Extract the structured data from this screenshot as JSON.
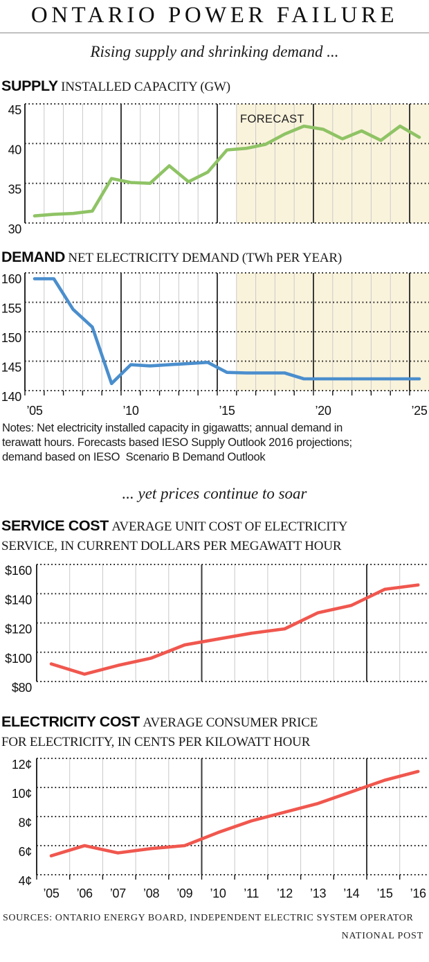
{
  "page": {
    "title": "ONTARIO POWER FAILURE",
    "subtitle1": "Rising supply and shrinking demand ...",
    "subtitle2": "... yet prices continue to soar",
    "notes_lines": [
      "Notes: Net electricity installed capacity in gigawatts; annual demand in",
      "terawatt hours. Forecasts based IESO Supply Outlook 2016 projections;",
      "demand based on IESO  Scenario B Demand Outlook"
    ],
    "sources": "SOURCES: ONTARIO ENERGY BOARD, INDEPENDENT ELECTRIC SYSTEM OPERATOR",
    "credit": "NATIONAL POST"
  },
  "colors": {
    "background": "#ffffff",
    "supply_line": "#8fc365",
    "demand_line": "#4a8ecd",
    "cost_line": "#f0574e",
    "forecast_bg": "#faf3dc",
    "grid_light": "#c9c9c9",
    "grid_dark": "#3a3a3a",
    "axis": "#111111",
    "dotted": "#1a1a1a",
    "rule": "#8a8a8a"
  },
  "chart_data": [
    {
      "id": "supply",
      "type": "line",
      "label_bold": "SUPPLY",
      "label_desc_line1": "INSTALLED CAPACITY (GW)",
      "label_desc_line2": "",
      "ylabel": "Installed capacity (GW)",
      "x": [
        2005,
        2006,
        2007,
        2008,
        2009,
        2010,
        2011,
        2012,
        2013,
        2014,
        2015,
        2016,
        2017,
        2018,
        2019,
        2020,
        2021,
        2022,
        2023,
        2024,
        2025
      ],
      "values": [
        30.9,
        31.1,
        31.2,
        31.5,
        35.6,
        35.1,
        35.0,
        37.2,
        35.2,
        36.4,
        39.2,
        39.4,
        39.9,
        41.2,
        42.2,
        41.8,
        40.6,
        41.6,
        40.4,
        42.2,
        40.8
      ],
      "ylim": [
        30,
        45
      ],
      "yticks": [
        45,
        40,
        35,
        30
      ],
      "ytick_labels": [
        "45",
        "40",
        "35",
        "30"
      ],
      "xtick_labels": [],
      "line_color": "#8fc365",
      "grid": "on",
      "forecast": {
        "label": "FORECAST",
        "from_x_index": 11
      }
    },
    {
      "id": "demand",
      "type": "line",
      "label_bold": "DEMAND",
      "label_desc_line1": "NET ELECTRICITY DEMAND (TWh PER YEAR)",
      "label_desc_line2": "",
      "ylabel": "Net electricity demand (TWh per year)",
      "x": [
        2005,
        2006,
        2007,
        2008,
        2009,
        2010,
        2011,
        2012,
        2013,
        2014,
        2015,
        2016,
        2017,
        2018,
        2019,
        2020,
        2021,
        2022,
        2023,
        2024,
        2025
      ],
      "values": [
        159.0,
        159.0,
        153.8,
        150.8,
        141.2,
        144.4,
        144.2,
        144.4,
        144.6,
        144.8,
        143.1,
        143.0,
        143.0,
        143.0,
        142.0,
        142.0,
        142.0,
        142.0,
        142.0,
        142.0,
        142.0
      ],
      "ylim": [
        140,
        160
      ],
      "yticks": [
        160,
        155,
        150,
        145,
        140
      ],
      "ytick_labels": [
        "160",
        "155",
        "150",
        "145",
        "140"
      ],
      "xtick_labels": [
        {
          "index": 0,
          "label": "’05"
        },
        {
          "index": 5,
          "label": "’10"
        },
        {
          "index": 10,
          "label": "’15"
        },
        {
          "index": 15,
          "label": "’20"
        },
        {
          "index": 20,
          "label": "’25"
        }
      ],
      "line_color": "#4a8ecd",
      "grid": "on",
      "forecast": {
        "label": "",
        "from_x_index": 11
      }
    },
    {
      "id": "service",
      "type": "line",
      "label_bold": "SERVICE COST",
      "label_desc_line1": "AVERAGE UNIT COST OF ELECTRICITY",
      "label_desc_line2": "SERVICE, IN CURRENT DOLLARS PER MEGAWATT HOUR",
      "ylabel": "Dollars per megawatt hour",
      "x": [
        2005,
        2006,
        2007,
        2008,
        2009,
        2010,
        2011,
        2012,
        2013,
        2014,
        2015,
        2016
      ],
      "values": [
        92,
        85,
        91,
        96,
        105,
        109,
        113,
        116,
        127,
        132,
        143,
        146
      ],
      "ylim": [
        80,
        160
      ],
      "yticks": [
        160,
        140,
        120,
        100,
        80
      ],
      "ytick_labels": [
        "$160",
        "$140",
        "$120",
        "$100",
        "$80"
      ],
      "xtick_labels": [],
      "line_color": "#f0574e",
      "grid": "on",
      "forecast": null
    },
    {
      "id": "electricity",
      "type": "line",
      "label_bold": "ELECTRICITY COST",
      "label_desc_line1": "AVERAGE CONSUMER PRICE",
      "label_desc_line2": "FOR ELECTRICITY, IN CENTS PER KILOWATT HOUR",
      "ylabel": "Cents per kilowatt hour",
      "x": [
        2005,
        2006,
        2007,
        2008,
        2009,
        2010,
        2011,
        2012,
        2013,
        2014,
        2015,
        2016
      ],
      "values": [
        5.3,
        6.0,
        5.5,
        5.8,
        6.0,
        6.9,
        7.7,
        8.3,
        8.9,
        9.7,
        10.5,
        11.1
      ],
      "ylim": [
        4,
        12
      ],
      "yticks": [
        12,
        10,
        8,
        6,
        4
      ],
      "ytick_labels": [
        "12¢",
        "10¢",
        "8¢",
        "6¢",
        "4¢"
      ],
      "xtick_labels": [
        {
          "index": 0,
          "label": "’05"
        },
        {
          "index": 1,
          "label": "’06"
        },
        {
          "index": 2,
          "label": "’07"
        },
        {
          "index": 3,
          "label": "’08"
        },
        {
          "index": 4,
          "label": "’09"
        },
        {
          "index": 5,
          "label": "’10"
        },
        {
          "index": 6,
          "label": "’11"
        },
        {
          "index": 7,
          "label": "’12"
        },
        {
          "index": 8,
          "label": "’13"
        },
        {
          "index": 9,
          "label": "’14"
        },
        {
          "index": 10,
          "label": "’15"
        },
        {
          "index": 11,
          "label": "’16"
        }
      ],
      "line_color": "#f0574e",
      "grid": "on",
      "forecast": null
    }
  ]
}
